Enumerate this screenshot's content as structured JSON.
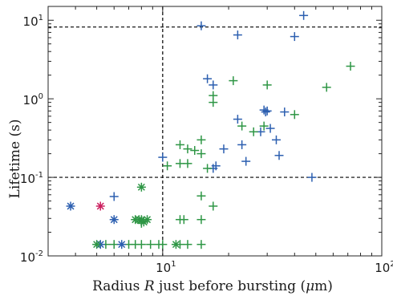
{
  "chart_data": {
    "type": "scatter",
    "title": "",
    "xlabel": {
      "prefix": "Radius ",
      "var": "R",
      "suffix": " just before bursting (",
      "unit_mu": "μ",
      "unit_rest": "m)"
    },
    "ylabel": "Lifetime (s)",
    "x_scale": "log",
    "y_scale": "log",
    "xlim": [
      3,
      100
    ],
    "ylim": [
      0.01,
      15
    ],
    "x_ticks": [
      {
        "value": 10,
        "base": "10",
        "exp": "1"
      },
      {
        "value": 100,
        "base": "10",
        "exp": "2"
      }
    ],
    "y_ticks": [
      {
        "value": 0.01,
        "base": "10",
        "exp": "-2"
      },
      {
        "value": 0.1,
        "base": "10",
        "exp": "-1"
      },
      {
        "value": 1,
        "base": "10",
        "exp": "0"
      },
      {
        "value": 10,
        "base": "10",
        "exp": "1"
      }
    ],
    "reference_lines": {
      "vertical_x": [
        10
      ],
      "horizontal_y": [
        0.1,
        8.2
      ]
    },
    "colors": {
      "blue": "#2c5fb0",
      "green": "#2e9645",
      "magenta": "#cc1f5f",
      "line": "#000000"
    },
    "series": [
      {
        "color": "blue",
        "marker": "plus",
        "points": [
          [
            15,
            8.5
          ],
          [
            22,
            6.5
          ],
          [
            40,
            6.2
          ],
          [
            44,
            11.5
          ],
          [
            16,
            1.8
          ],
          [
            17,
            1.5
          ],
          [
            29,
            0.72
          ],
          [
            30,
            0.7
          ],
          [
            29.5,
            0.68
          ],
          [
            36,
            0.68
          ],
          [
            22,
            0.55
          ],
          [
            28,
            0.38
          ],
          [
            31,
            0.42
          ],
          [
            10,
            0.18
          ],
          [
            17.5,
            0.14
          ],
          [
            17,
            0.13
          ],
          [
            19,
            0.23
          ],
          [
            23,
            0.26
          ],
          [
            33,
            0.3
          ],
          [
            24,
            0.16
          ],
          [
            34,
            0.19
          ],
          [
            48,
            0.1
          ],
          [
            6,
            0.057
          ]
        ]
      },
      {
        "color": "green",
        "marker": "plus",
        "points": [
          [
            72,
            2.6
          ],
          [
            56,
            1.4
          ],
          [
            40,
            0.63
          ],
          [
            30,
            1.5
          ],
          [
            21,
            1.7
          ],
          [
            17,
            1.1
          ],
          [
            17,
            0.9
          ],
          [
            23,
            0.45
          ],
          [
            29,
            0.45
          ],
          [
            26,
            0.38
          ],
          [
            15,
            0.3
          ],
          [
            14,
            0.22
          ],
          [
            12,
            0.26
          ],
          [
            13,
            0.23
          ],
          [
            15,
            0.2
          ],
          [
            10.5,
            0.14
          ],
          [
            12,
            0.15
          ],
          [
            13,
            0.15
          ],
          [
            16,
            0.13
          ],
          [
            15,
            0.058
          ],
          [
            17,
            0.043
          ],
          [
            15,
            0.029
          ],
          [
            12,
            0.029
          ],
          [
            12.5,
            0.029
          ],
          [
            5.5,
            0.014
          ],
          [
            6,
            0.014
          ],
          [
            7,
            0.014
          ],
          [
            7.5,
            0.014
          ],
          [
            8,
            0.014
          ],
          [
            8.8,
            0.014
          ],
          [
            9.6,
            0.014
          ],
          [
            10,
            0.014
          ],
          [
            12,
            0.014
          ],
          [
            13,
            0.014
          ],
          [
            15,
            0.014
          ],
          [
            8,
            0.026
          ]
        ]
      },
      {
        "color": "blue",
        "marker": "star",
        "points": [
          [
            3.8,
            0.043
          ],
          [
            6,
            0.029
          ],
          [
            6.5,
            0.014
          ],
          [
            5.2,
            0.014
          ]
        ]
      },
      {
        "color": "green",
        "marker": "star",
        "points": [
          [
            8,
            0.075
          ],
          [
            7.5,
            0.029
          ],
          [
            8,
            0.029
          ],
          [
            8.5,
            0.029
          ],
          [
            7.8,
            0.029
          ],
          [
            11.5,
            0.014
          ],
          [
            5,
            0.014
          ],
          [
            8.2,
            0.027
          ]
        ]
      },
      {
        "color": "magenta",
        "marker": "star",
        "points": [
          [
            5.2,
            0.043
          ]
        ]
      }
    ]
  }
}
